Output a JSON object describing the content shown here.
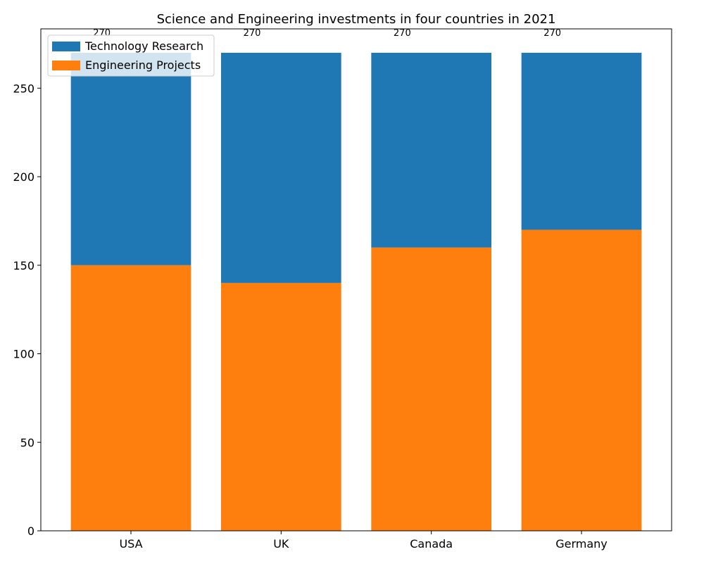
{
  "chart_data": {
    "type": "bar",
    "stacked": true,
    "title": "Science and Engineering investments in four countries in 2021",
    "xlabel": "",
    "ylabel": "",
    "categories": [
      "USA",
      "UK",
      "Canada",
      "Germany"
    ],
    "series": [
      {
        "name": "Engineering Projects",
        "color": "#ff7f0e",
        "values": [
          150,
          140,
          160,
          170
        ]
      },
      {
        "name": "Technology Research",
        "color": "#1f77b4",
        "values": [
          120,
          130,
          110,
          100
        ]
      }
    ],
    "totals": [
      270,
      270,
      270,
      270
    ],
    "total_labels": [
      "270",
      "270",
      "270",
      "270"
    ],
    "ylim": [
      0,
      283.5
    ],
    "yticks": [
      0,
      50,
      100,
      150,
      200,
      250
    ],
    "ytick_labels": [
      "0",
      "50",
      "100",
      "150",
      "200",
      "250"
    ],
    "grid": false,
    "legend": {
      "position": "top-left",
      "entries": [
        {
          "label": "Technology Research",
          "color": "#1f77b4"
        },
        {
          "label": "Engineering Projects",
          "color": "#ff7f0e"
        }
      ]
    }
  }
}
